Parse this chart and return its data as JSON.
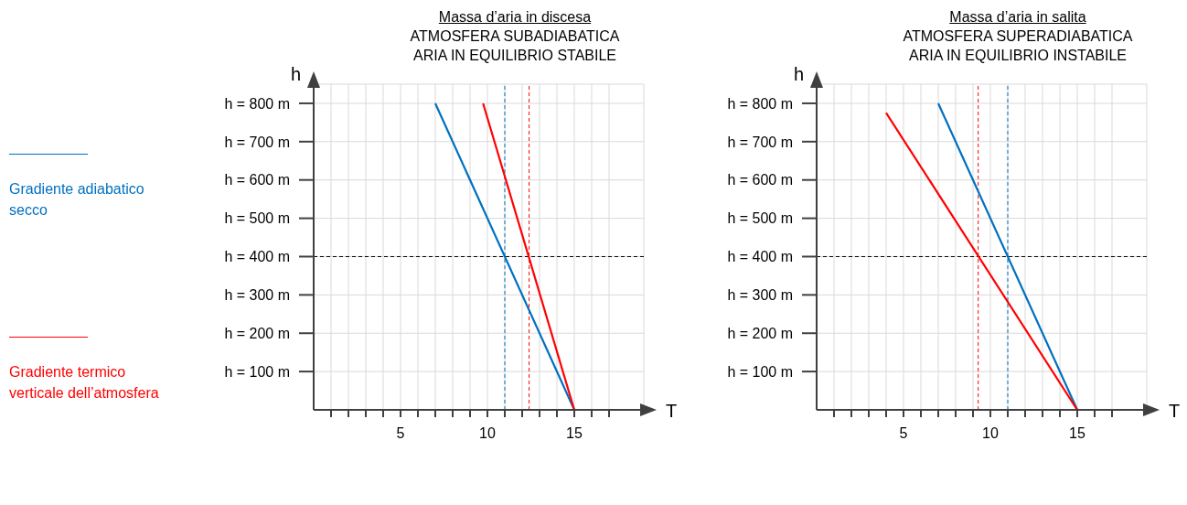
{
  "chart_data": [
    {
      "type": "line",
      "title": "Massa d’aria in discesa",
      "subtitle": "ATMOSFERA SUBADIABATICA\nARIA IN EQUILIBRIO STABILE",
      "xlabel": "T",
      "ylabel": "h",
      "xlim": [
        0,
        19
      ],
      "ylim": [
        0,
        850
      ],
      "xticks": [
        {
          "value": 1,
          "label": null
        },
        {
          "value": 2,
          "label": null
        },
        {
          "value": 3,
          "label": null
        },
        {
          "value": 4,
          "label": null
        },
        5,
        {
          "value": 6,
          "label": null
        },
        {
          "value": 7,
          "label": null
        },
        {
          "value": 8,
          "label": null
        },
        {
          "value": 9,
          "label": null
        },
        10,
        {
          "value": 11,
          "label": null
        },
        {
          "value": 12,
          "label": null
        },
        {
          "value": 13,
          "label": null
        },
        {
          "value": 14,
          "label": null
        },
        15,
        {
          "value": 16,
          "label": null
        },
        {
          "value": 17,
          "label": null
        }
      ],
      "yticks": [
        {
          "value": 100,
          "label": "h = 100 m"
        },
        {
          "value": 200,
          "label": "h = 200 m"
        },
        {
          "value": 300,
          "label": "h = 300 m"
        },
        {
          "value": 400,
          "label": "h = 400 m"
        },
        {
          "value": 500,
          "label": "h = 500 m"
        },
        {
          "value": 600,
          "label": "h = 600 m"
        },
        {
          "value": 700,
          "label": "h = 700 m"
        },
        {
          "value": 800,
          "label": "h = 800 m"
        }
      ],
      "grid": true,
      "legend": "left",
      "series": [
        {
          "name": "Gradiente adiabatico secco",
          "color": "#0070c0",
          "x": [
            7,
            15
          ],
          "values": [
            800,
            0
          ]
        },
        {
          "name": "Gradiente termico verticale dell’atmosfera",
          "color": "#ff0000",
          "x": [
            9.75,
            15
          ],
          "values": [
            800,
            0
          ]
        }
      ],
      "ref_lines": [
        {
          "axis": "y",
          "value": 400,
          "color": "#000000",
          "line_style": "dashed"
        },
        {
          "axis": "x",
          "value": 11,
          "color": "#0070c0",
          "line_style": "dashed"
        },
        {
          "axis": "x",
          "value": 12.4,
          "color": "#ff0000",
          "line_style": "dashed"
        }
      ]
    },
    {
      "type": "line",
      "title": "Massa d’aria in salita",
      "subtitle": "ATMOSFERA SUPERADIABATICA\nARIA IN EQUILIBRIO INSTABILE",
      "xlabel": "T",
      "ylabel": "h",
      "xlim": [
        0,
        19
      ],
      "ylim": [
        0,
        850
      ],
      "xticks": [
        {
          "value": 1,
          "label": null
        },
        {
          "value": 2,
          "label": null
        },
        {
          "value": 3,
          "label": null
        },
        {
          "value": 4,
          "label": null
        },
        5,
        {
          "value": 6,
          "label": null
        },
        {
          "value": 7,
          "label": null
        },
        {
          "value": 8,
          "label": null
        },
        {
          "value": 9,
          "label": null
        },
        10,
        {
          "value": 11,
          "label": null
        },
        {
          "value": 12,
          "label": null
        },
        {
          "value": 13,
          "label": null
        },
        {
          "value": 14,
          "label": null
        },
        15,
        {
          "value": 16,
          "label": null
        },
        {
          "value": 17,
          "label": null
        }
      ],
      "yticks": [
        {
          "value": 100,
          "label": "h = 100 m"
        },
        {
          "value": 200,
          "label": "h = 200 m"
        },
        {
          "value": 300,
          "label": "h = 300 m"
        },
        {
          "value": 400,
          "label": "h = 400 m"
        },
        {
          "value": 500,
          "label": "h = 500 m"
        },
        {
          "value": 600,
          "label": "h = 600 m"
        },
        {
          "value": 700,
          "label": "h = 700 m"
        },
        {
          "value": 800,
          "label": "h = 800 m"
        }
      ],
      "grid": true,
      "series": [
        {
          "color": "#0070c0",
          "x": [
            7,
            15
          ],
          "values": [
            800,
            0
          ]
        },
        {
          "color": "#ff0000",
          "x": [
            4,
            15
          ],
          "values": [
            775,
            0
          ]
        }
      ],
      "ref_lines": [
        {
          "axis": "y",
          "value": 400,
          "color": "#000000",
          "line_style": "dashed"
        },
        {
          "axis": "x",
          "value": 9.3,
          "color": "#ff0000",
          "line_style": "dashed"
        },
        {
          "axis": "x",
          "value": 11,
          "color": "#0070c0",
          "line_style": "dashed"
        }
      ]
    }
  ]
}
